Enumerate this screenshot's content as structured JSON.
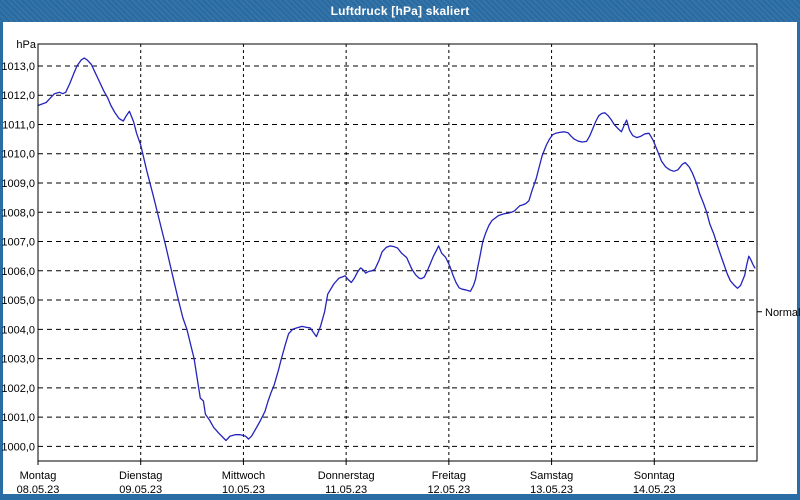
{
  "window": {
    "title": "Luftdruck [hPa] skaliert"
  },
  "colors": {
    "titlebar": "#2a6da4",
    "window_border": "#2a6da4",
    "plot_background": "#ffffff",
    "grid": "#000000",
    "text": "#000000",
    "line": "#2424bc"
  },
  "chart_data": {
    "type": "line",
    "title": "Luftdruck [hPa] skaliert",
    "ylabel": "hPa",
    "ylim": [
      999.5,
      1013.75
    ],
    "x_range_days": [
      0,
      7
    ],
    "grid": true,
    "yticks": [
      {
        "value": 1013,
        "label": "1013,0"
      },
      {
        "value": 1012,
        "label": "1012,0"
      },
      {
        "value": 1011,
        "label": "1011,0"
      },
      {
        "value": 1010,
        "label": "1010,0"
      },
      {
        "value": 1009,
        "label": "1009,0"
      },
      {
        "value": 1008,
        "label": "1008,0"
      },
      {
        "value": 1007,
        "label": "1007,0"
      },
      {
        "value": 1006,
        "label": "1006,0"
      },
      {
        "value": 1005,
        "label": "1005,0"
      },
      {
        "value": 1004,
        "label": "1004,0"
      },
      {
        "value": 1003,
        "label": "1003,0"
      },
      {
        "value": 1002,
        "label": "1002,0"
      },
      {
        "value": 1001,
        "label": "1001,0"
      },
      {
        "value": 1000,
        "label": "1000,0"
      }
    ],
    "xticks_days": [
      {
        "name": "Montag",
        "date": "08.05.23"
      },
      {
        "name": "Dienstag",
        "date": "09.05.23"
      },
      {
        "name": "Mittwoch",
        "date": "10.05.23"
      },
      {
        "name": "Donnerstag",
        "date": "11.05.23"
      },
      {
        "name": "Freitag",
        "date": "12.05.23"
      },
      {
        "name": "Samstag",
        "date": "13.05.23"
      },
      {
        "name": "Sonntag",
        "date": "14.05.23"
      }
    ],
    "right_marker": {
      "label": "Normal",
      "value": 1004.6
    },
    "series": [
      {
        "name": "Luftdruck",
        "color": "#2424bc",
        "points": [
          [
            0.0,
            1011.65
          ],
          [
            0.04,
            1011.7
          ],
          [
            0.08,
            1011.75
          ],
          [
            0.12,
            1011.9
          ],
          [
            0.16,
            1012.05
          ],
          [
            0.21,
            1012.1
          ],
          [
            0.24,
            1012.05
          ],
          [
            0.27,
            1012.1
          ],
          [
            0.31,
            1012.4
          ],
          [
            0.35,
            1012.75
          ],
          [
            0.38,
            1013.0
          ],
          [
            0.42,
            1013.2
          ],
          [
            0.45,
            1013.27
          ],
          [
            0.48,
            1013.2
          ],
          [
            0.52,
            1013.05
          ],
          [
            0.56,
            1012.75
          ],
          [
            0.6,
            1012.45
          ],
          [
            0.64,
            1012.15
          ],
          [
            0.68,
            1011.9
          ],
          [
            0.71,
            1011.65
          ],
          [
            0.75,
            1011.4
          ],
          [
            0.79,
            1011.2
          ],
          [
            0.83,
            1011.12
          ],
          [
            0.86,
            1011.3
          ],
          [
            0.89,
            1011.45
          ],
          [
            0.93,
            1011.1
          ],
          [
            0.96,
            1010.7
          ],
          [
            1.0,
            1010.3
          ],
          [
            1.06,
            1009.4
          ],
          [
            1.12,
            1008.6
          ],
          [
            1.18,
            1007.75
          ],
          [
            1.24,
            1006.9
          ],
          [
            1.3,
            1006.0
          ],
          [
            1.36,
            1005.1
          ],
          [
            1.41,
            1004.4
          ],
          [
            1.45,
            1004.0
          ],
          [
            1.52,
            1003.0
          ],
          [
            1.56,
            1002.1
          ],
          [
            1.58,
            1001.65
          ],
          [
            1.61,
            1001.55
          ],
          [
            1.63,
            1001.1
          ],
          [
            1.67,
            1000.9
          ],
          [
            1.71,
            1000.65
          ],
          [
            1.76,
            1000.45
          ],
          [
            1.83,
            1000.2
          ],
          [
            1.87,
            1000.35
          ],
          [
            1.92,
            1000.4
          ],
          [
            1.97,
            1000.4
          ],
          [
            2.02,
            1000.35
          ],
          [
            2.05,
            1000.25
          ],
          [
            2.08,
            1000.35
          ],
          [
            2.12,
            1000.6
          ],
          [
            2.16,
            1000.85
          ],
          [
            2.19,
            1001.05
          ],
          [
            2.21,
            1001.2
          ],
          [
            2.24,
            1001.55
          ],
          [
            2.27,
            1001.85
          ],
          [
            2.3,
            1002.1
          ],
          [
            2.34,
            1002.6
          ],
          [
            2.37,
            1003.0
          ],
          [
            2.41,
            1003.5
          ],
          [
            2.44,
            1003.85
          ],
          [
            2.48,
            1004.0
          ],
          [
            2.52,
            1004.05
          ],
          [
            2.57,
            1004.1
          ],
          [
            2.61,
            1004.07
          ],
          [
            2.65,
            1004.05
          ],
          [
            2.68,
            1003.9
          ],
          [
            2.71,
            1003.75
          ],
          [
            2.75,
            1004.1
          ],
          [
            2.79,
            1004.6
          ],
          [
            2.82,
            1005.2
          ],
          [
            2.88,
            1005.55
          ],
          [
            2.93,
            1005.75
          ],
          [
            2.97,
            1005.8
          ],
          [
            2.99,
            1005.83
          ],
          [
            3.02,
            1005.7
          ],
          [
            3.05,
            1005.6
          ],
          [
            3.08,
            1005.75
          ],
          [
            3.11,
            1005.95
          ],
          [
            3.14,
            1006.1
          ],
          [
            3.16,
            1006.05
          ],
          [
            3.19,
            1005.92
          ],
          [
            3.22,
            1005.98
          ],
          [
            3.25,
            1006.0
          ],
          [
            3.28,
            1006.05
          ],
          [
            3.32,
            1006.35
          ],
          [
            3.35,
            1006.65
          ],
          [
            3.39,
            1006.8
          ],
          [
            3.43,
            1006.85
          ],
          [
            3.47,
            1006.82
          ],
          [
            3.5,
            1006.78
          ],
          [
            3.54,
            1006.6
          ],
          [
            3.59,
            1006.45
          ],
          [
            3.64,
            1006.05
          ],
          [
            3.68,
            1005.85
          ],
          [
            3.71,
            1005.75
          ],
          [
            3.73,
            1005.73
          ],
          [
            3.76,
            1005.78
          ],
          [
            3.79,
            1006.0
          ],
          [
            3.82,
            1006.25
          ],
          [
            3.85,
            1006.5
          ],
          [
            3.88,
            1006.7
          ],
          [
            3.9,
            1006.85
          ],
          [
            3.93,
            1006.6
          ],
          [
            3.97,
            1006.45
          ],
          [
            4.01,
            1006.15
          ],
          [
            4.04,
            1005.85
          ],
          [
            4.07,
            1005.6
          ],
          [
            4.1,
            1005.42
          ],
          [
            4.13,
            1005.37
          ],
          [
            4.16,
            1005.35
          ],
          [
            4.19,
            1005.32
          ],
          [
            4.21,
            1005.3
          ],
          [
            4.24,
            1005.5
          ],
          [
            4.26,
            1005.72
          ],
          [
            4.28,
            1006.1
          ],
          [
            4.3,
            1006.45
          ],
          [
            4.33,
            1007.0
          ],
          [
            4.36,
            1007.3
          ],
          [
            4.39,
            1007.55
          ],
          [
            4.42,
            1007.72
          ],
          [
            4.45,
            1007.8
          ],
          [
            4.48,
            1007.88
          ],
          [
            4.51,
            1007.92
          ],
          [
            4.54,
            1007.95
          ],
          [
            4.58,
            1007.97
          ],
          [
            4.61,
            1008.0
          ],
          [
            4.64,
            1008.05
          ],
          [
            4.66,
            1008.12
          ],
          [
            4.69,
            1008.22
          ],
          [
            4.72,
            1008.25
          ],
          [
            4.75,
            1008.3
          ],
          [
            4.78,
            1008.4
          ],
          [
            4.81,
            1008.75
          ],
          [
            4.85,
            1009.15
          ],
          [
            4.88,
            1009.55
          ],
          [
            4.91,
            1009.95
          ],
          [
            4.95,
            1010.3
          ],
          [
            4.98,
            1010.5
          ],
          [
            5.01,
            1010.65
          ],
          [
            5.04,
            1010.7
          ],
          [
            5.08,
            1010.73
          ],
          [
            5.12,
            1010.75
          ],
          [
            5.16,
            1010.72
          ],
          [
            5.19,
            1010.6
          ],
          [
            5.22,
            1010.5
          ],
          [
            5.26,
            1010.43
          ],
          [
            5.3,
            1010.4
          ],
          [
            5.34,
            1010.42
          ],
          [
            5.37,
            1010.6
          ],
          [
            5.4,
            1010.85
          ],
          [
            5.43,
            1011.1
          ],
          [
            5.46,
            1011.3
          ],
          [
            5.49,
            1011.38
          ],
          [
            5.52,
            1011.4
          ],
          [
            5.55,
            1011.3
          ],
          [
            5.58,
            1011.17
          ],
          [
            5.61,
            1011.0
          ],
          [
            5.65,
            1010.85
          ],
          [
            5.68,
            1010.75
          ],
          [
            5.71,
            1011.0
          ],
          [
            5.73,
            1011.15
          ],
          [
            5.76,
            1010.8
          ],
          [
            5.79,
            1010.62
          ],
          [
            5.83,
            1010.55
          ],
          [
            5.87,
            1010.6
          ],
          [
            5.91,
            1010.68
          ],
          [
            5.95,
            1010.7
          ],
          [
            5.99,
            1010.45
          ],
          [
            6.03,
            1010.1
          ],
          [
            6.07,
            1009.75
          ],
          [
            6.11,
            1009.55
          ],
          [
            6.15,
            1009.45
          ],
          [
            6.19,
            1009.4
          ],
          [
            6.23,
            1009.45
          ],
          [
            6.27,
            1009.63
          ],
          [
            6.3,
            1009.7
          ],
          [
            6.34,
            1009.55
          ],
          [
            6.37,
            1009.35
          ],
          [
            6.41,
            1009.0
          ],
          [
            6.44,
            1008.65
          ],
          [
            6.48,
            1008.3
          ],
          [
            6.51,
            1008.0
          ],
          [
            6.54,
            1007.6
          ],
          [
            6.58,
            1007.25
          ],
          [
            6.61,
            1006.92
          ],
          [
            6.64,
            1006.6
          ],
          [
            6.68,
            1006.2
          ],
          [
            6.71,
            1005.9
          ],
          [
            6.74,
            1005.66
          ],
          [
            6.78,
            1005.5
          ],
          [
            6.81,
            1005.4
          ],
          [
            6.84,
            1005.5
          ],
          [
            6.88,
            1005.85
          ],
          [
            6.9,
            1006.2
          ],
          [
            6.92,
            1006.5
          ],
          [
            6.94,
            1006.38
          ],
          [
            6.96,
            1006.22
          ],
          [
            6.98,
            1006.1
          ]
        ]
      }
    ]
  }
}
